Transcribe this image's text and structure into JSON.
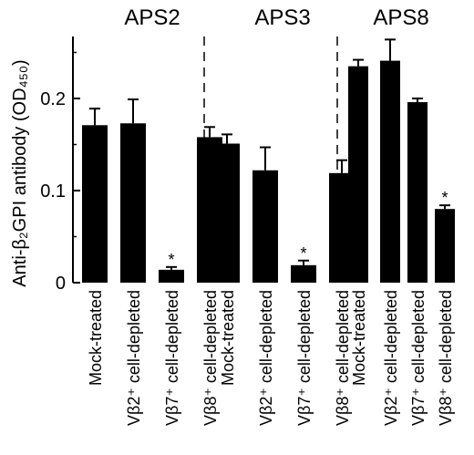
{
  "chart_data": {
    "type": "bar",
    "title": "",
    "ylabel": "Anti-β₂GPI antibody (OD₄₅₀)",
    "ylim": [
      0,
      0.27
    ],
    "yticks": [
      0,
      0.1,
      0.2
    ],
    "ytick_labels": [
      "0",
      "0.1",
      "0.2"
    ],
    "grid": false,
    "groups": [
      "APS2",
      "APS3",
      "APS8"
    ],
    "categories": [
      "Mock-treated",
      "Vβ2⁺ cell-depleted",
      "Vβ7⁺ cell-depleted",
      "Vβ8⁺ cell-depleted"
    ],
    "series": [
      {
        "group": "APS2",
        "values": [
          0.171,
          0.173,
          0.014,
          0.158
        ],
        "errors": [
          0.018,
          0.026,
          0.003,
          0.011
        ],
        "significant": [
          false,
          false,
          true,
          false
        ]
      },
      {
        "group": "APS3",
        "values": [
          0.151,
          0.122,
          0.019,
          0.119
        ],
        "errors": [
          0.01,
          0.025,
          0.005,
          0.014
        ],
        "significant": [
          false,
          false,
          true,
          false
        ]
      },
      {
        "group": "APS8",
        "values": [
          0.235,
          0.241,
          0.196,
          0.08
        ],
        "errors": [
          0.007,
          0.023,
          0.004,
          0.004
        ],
        "significant": [
          false,
          false,
          false,
          true
        ]
      }
    ],
    "significance_marker": "*"
  }
}
